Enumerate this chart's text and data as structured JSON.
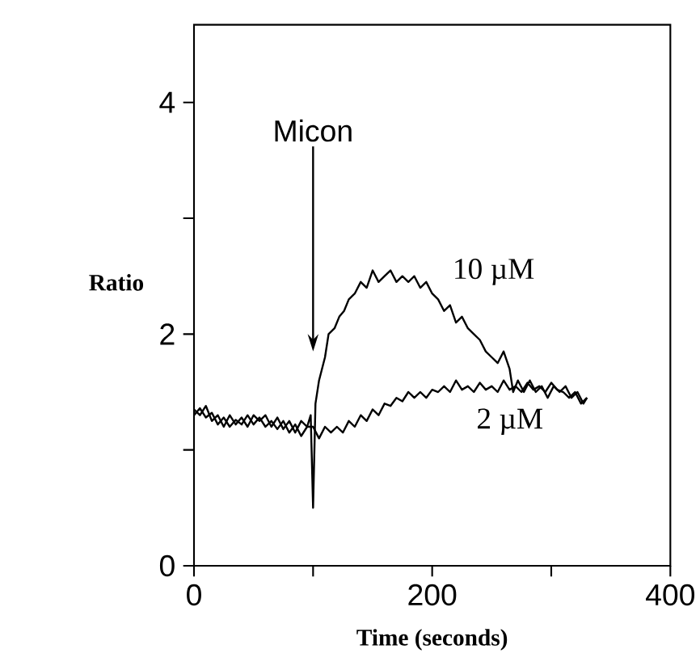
{
  "chart_data": {
    "type": "line",
    "xlabel": "Time (seconds)",
    "ylabel": "Ratio",
    "xlim": [
      0,
      400
    ],
    "ylim": [
      0,
      4.67
    ],
    "xticks": [
      0,
      {
        "value": 100,
        "label": null
      },
      200,
      {
        "value": 300,
        "label": null
      },
      400
    ],
    "yticks": [
      0,
      {
        "value": 1,
        "label": null
      },
      2,
      {
        "value": 3,
        "label": null
      },
      4
    ],
    "grid": false,
    "legend": false,
    "marker": "none",
    "line_style": "solid",
    "annotations": [
      "Micon"
    ],
    "series": [
      {
        "name": "10 µM",
        "color": "#000000",
        "x": [
          0,
          5,
          10,
          15,
          20,
          25,
          30,
          35,
          40,
          45,
          50,
          55,
          60,
          65,
          70,
          75,
          80,
          85,
          90,
          95,
          98,
          100,
          102,
          105,
          110,
          113,
          118,
          122,
          126,
          130,
          135,
          140,
          145,
          150,
          155,
          160,
          165,
          170,
          175,
          180,
          185,
          190,
          195,
          200,
          205,
          210,
          215,
          220,
          225,
          230,
          235,
          240,
          245,
          250,
          255,
          260,
          265,
          268,
          272,
          277,
          282,
          287,
          292,
          297,
          302,
          307,
          312,
          317,
          322,
          327,
          330
        ],
        "values": [
          1.35,
          1.3,
          1.38,
          1.25,
          1.3,
          1.2,
          1.3,
          1.22,
          1.28,
          1.2,
          1.3,
          1.25,
          1.3,
          1.2,
          1.28,
          1.18,
          1.25,
          1.15,
          1.25,
          1.2,
          1.3,
          0.5,
          1.4,
          1.6,
          1.8,
          2.0,
          2.05,
          2.15,
          2.2,
          2.3,
          2.35,
          2.45,
          2.4,
          2.55,
          2.45,
          2.5,
          2.55,
          2.45,
          2.5,
          2.45,
          2.5,
          2.4,
          2.45,
          2.35,
          2.3,
          2.2,
          2.25,
          2.1,
          2.15,
          2.05,
          2.0,
          1.95,
          1.85,
          1.8,
          1.75,
          1.85,
          1.7,
          1.5,
          1.6,
          1.5,
          1.6,
          1.5,
          1.55,
          1.45,
          1.55,
          1.5,
          1.55,
          1.45,
          1.5,
          1.4,
          1.45
        ]
      },
      {
        "name": "2 µM",
        "color": "#000000",
        "x": [
          0,
          5,
          10,
          15,
          20,
          25,
          30,
          35,
          40,
          45,
          50,
          55,
          60,
          65,
          70,
          75,
          80,
          85,
          90,
          95,
          100,
          105,
          110,
          115,
          120,
          125,
          130,
          135,
          140,
          145,
          150,
          155,
          160,
          165,
          170,
          175,
          180,
          185,
          190,
          195,
          200,
          205,
          210,
          215,
          220,
          225,
          230,
          235,
          240,
          245,
          250,
          255,
          260,
          265,
          270,
          275,
          280,
          285,
          290,
          295,
          300,
          305,
          310,
          315,
          320,
          325,
          330
        ],
        "values": [
          1.3,
          1.36,
          1.28,
          1.32,
          1.22,
          1.28,
          1.2,
          1.26,
          1.22,
          1.3,
          1.22,
          1.28,
          1.2,
          1.25,
          1.18,
          1.25,
          1.15,
          1.22,
          1.12,
          1.2,
          1.2,
          1.1,
          1.2,
          1.15,
          1.2,
          1.15,
          1.25,
          1.2,
          1.3,
          1.25,
          1.35,
          1.3,
          1.4,
          1.38,
          1.45,
          1.42,
          1.5,
          1.45,
          1.5,
          1.45,
          1.52,
          1.5,
          1.55,
          1.5,
          1.6,
          1.52,
          1.55,
          1.5,
          1.58,
          1.52,
          1.55,
          1.5,
          1.6,
          1.52,
          1.55,
          1.5,
          1.58,
          1.52,
          1.55,
          1.5,
          1.58,
          1.52,
          1.5,
          1.45,
          1.5,
          1.4,
          1.45
        ]
      }
    ]
  }
}
